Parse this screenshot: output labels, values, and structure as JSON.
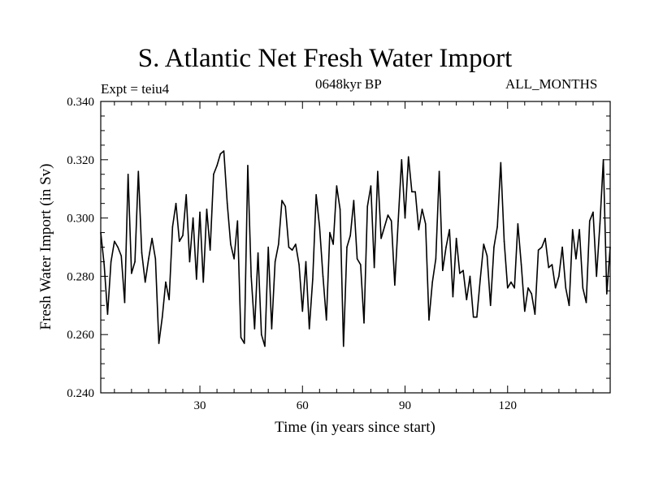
{
  "chart_data": {
    "type": "line",
    "title": "S. Atlantic Net Fresh Water Import",
    "subtitle_left": "Expt = teiu4",
    "subtitle_center": "0648kyr BP",
    "subtitle_right": "ALL_MONTHS",
    "xlabel": "Time (in years since start)",
    "ylabel": "Fresh Water Import (in Sv)",
    "xlim": [
      1,
      150
    ],
    "ylim": [
      0.24,
      0.34
    ],
    "xticks": [
      30,
      60,
      90,
      120
    ],
    "xtick_labels": [
      "30",
      "60",
      "90",
      "120"
    ],
    "yticks": [
      0.24,
      0.26,
      0.28,
      0.3,
      0.32,
      0.34
    ],
    "ytick_labels": [
      "0.240",
      "0.260",
      "0.280",
      "0.300",
      "0.320",
      "0.340"
    ],
    "series": [
      {
        "name": "Fresh Water Import",
        "color": "#000000",
        "x": [
          1,
          2,
          3,
          4,
          5,
          6,
          7,
          8,
          9,
          10,
          11,
          12,
          13,
          14,
          15,
          16,
          17,
          18,
          19,
          20,
          21,
          22,
          23,
          24,
          25,
          26,
          27,
          28,
          29,
          30,
          31,
          32,
          33,
          34,
          35,
          36,
          37,
          38,
          39,
          40,
          41,
          42,
          43,
          44,
          45,
          46,
          47,
          48,
          49,
          50,
          51,
          52,
          53,
          54,
          55,
          56,
          57,
          58,
          59,
          60,
          61,
          62,
          63,
          64,
          65,
          66,
          67,
          68,
          69,
          70,
          71,
          72,
          73,
          74,
          75,
          76,
          77,
          78,
          79,
          80,
          81,
          82,
          83,
          84,
          85,
          86,
          87,
          88,
          89,
          90,
          91,
          92,
          93,
          94,
          95,
          96,
          97,
          98,
          99,
          100,
          101,
          102,
          103,
          104,
          105,
          106,
          107,
          108,
          109,
          110,
          111,
          112,
          113,
          114,
          115,
          116,
          117,
          118,
          119,
          120,
          121,
          122,
          123,
          124,
          125,
          126,
          127,
          128,
          129,
          130,
          131,
          132,
          133,
          134,
          135,
          136,
          137,
          138,
          139,
          140,
          141,
          142,
          143,
          144,
          145,
          146,
          147,
          148,
          149,
          150
        ],
        "values": [
          0.295,
          0.284,
          0.267,
          0.285,
          0.292,
          0.29,
          0.287,
          0.271,
          0.315,
          0.281,
          0.285,
          0.316,
          0.288,
          0.278,
          0.286,
          0.293,
          0.286,
          0.257,
          0.266,
          0.278,
          0.272,
          0.297,
          0.305,
          0.292,
          0.294,
          0.308,
          0.285,
          0.3,
          0.279,
          0.302,
          0.278,
          0.303,
          0.289,
          0.315,
          0.318,
          0.322,
          0.323,
          0.305,
          0.291,
          0.286,
          0.299,
          0.259,
          0.257,
          0.318,
          0.28,
          0.262,
          0.288,
          0.26,
          0.256,
          0.29,
          0.262,
          0.285,
          0.291,
          0.306,
          0.304,
          0.29,
          0.289,
          0.291,
          0.284,
          0.268,
          0.285,
          0.262,
          0.279,
          0.308,
          0.297,
          0.28,
          0.265,
          0.295,
          0.291,
          0.311,
          0.303,
          0.256,
          0.29,
          0.294,
          0.306,
          0.286,
          0.284,
          0.264,
          0.304,
          0.311,
          0.283,
          0.316,
          0.293,
          0.297,
          0.301,
          0.299,
          0.277,
          0.299,
          0.32,
          0.3,
          0.321,
          0.309,
          0.309,
          0.296,
          0.303,
          0.298,
          0.265,
          0.278,
          0.286,
          0.316,
          0.282,
          0.29,
          0.296,
          0.273,
          0.293,
          0.281,
          0.282,
          0.272,
          0.28,
          0.266,
          0.266,
          0.279,
          0.291,
          0.287,
          0.27,
          0.29,
          0.297,
          0.319,
          0.292,
          0.276,
          0.278,
          0.276,
          0.298,
          0.284,
          0.268,
          0.276,
          0.274,
          0.267,
          0.289,
          0.29,
          0.293,
          0.283,
          0.284,
          0.276,
          0.28,
          0.29,
          0.276,
          0.27,
          0.296,
          0.286,
          0.296,
          0.276,
          0.271,
          0.299,
          0.302,
          0.28,
          0.298,
          0.32,
          0.274,
          0.29
        ]
      }
    ]
  }
}
